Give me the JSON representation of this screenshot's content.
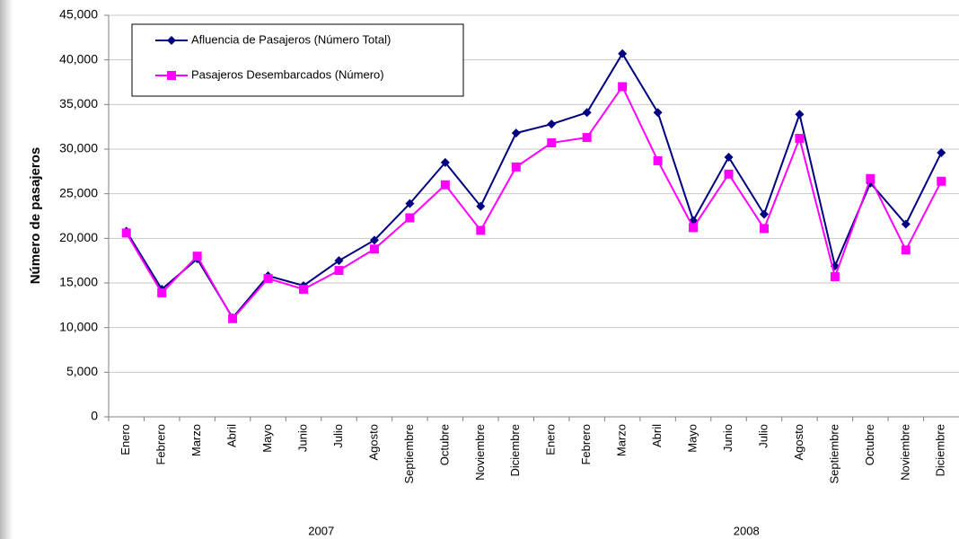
{
  "chart_data": {
    "type": "line",
    "ylabel": "Número de pasajeros",
    "categories": [
      "Enero",
      "Febrero",
      "Marzo",
      "Abril",
      "Mayo",
      "Junio",
      "Julio",
      "Agosto",
      "Septiembre",
      "Octubre",
      "Noviembre",
      "Diciembre",
      "Enero",
      "Febrero",
      "Marzo",
      "Abril",
      "Mayo",
      "Junio",
      "Julio",
      "Agosto",
      "Septiembre",
      "Octubre",
      "Noviembre",
      "Diciembre"
    ],
    "groups": [
      "2007",
      "2008"
    ],
    "series": [
      {
        "name": "Afluencia de Pasajeros (Número Total)",
        "color": "#000080",
        "marker": "diamond",
        "values": [
          20800,
          14300,
          17700,
          11100,
          15800,
          14700,
          17500,
          19800,
          23900,
          28500,
          23600,
          31800,
          32800,
          34100,
          40700,
          34100,
          22000,
          29100,
          22700,
          33900,
          16900,
          26200,
          21600,
          29600
        ]
      },
      {
        "name": "Pasajeros Desembarcados (Número)",
        "color": "#ff00ff",
        "marker": "square",
        "values": [
          20600,
          13900,
          18000,
          11000,
          15500,
          14300,
          16400,
          18800,
          22300,
          26000,
          20900,
          28000,
          30700,
          31300,
          37000,
          28700,
          21200,
          27200,
          21100,
          31200,
          15700,
          26700,
          18700,
          26400
        ]
      }
    ],
    "ylim": [
      0,
      45000
    ],
    "yticks": [
      0,
      {
        "value": 5000,
        "label": "5,000"
      },
      {
        "value": 10000,
        "label": "10,000"
      },
      {
        "value": 15000,
        "label": "15,000"
      },
      {
        "value": 20000,
        "label": "20,000"
      },
      {
        "value": 25000,
        "label": "25,000"
      },
      {
        "value": 30000,
        "label": "30,000"
      },
      {
        "value": 35000,
        "label": "35,000"
      },
      {
        "value": 40000,
        "label": "40,000"
      },
      {
        "value": 45000,
        "label": "45,000"
      }
    ],
    "grid": true,
    "legend": "upper left"
  }
}
